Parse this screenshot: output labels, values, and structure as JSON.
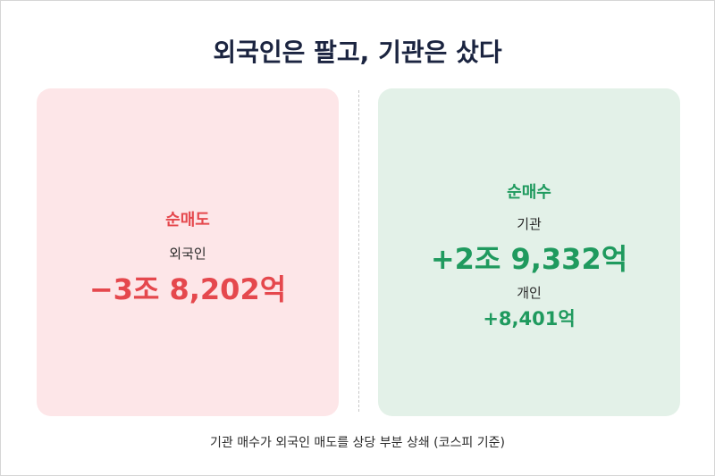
{
  "header": {
    "title": "외국인은 팔고, 기관은 샀다"
  },
  "panels": [
    {
      "heading": "순매도",
      "items": [
        {
          "label": "외국인",
          "amount": "−3조 8,202억"
        }
      ]
    },
    {
      "heading": "순매수",
      "items": [
        {
          "label": "기관",
          "amount": "+2조 9,332억"
        },
        {
          "label": "개인",
          "amount": "+8,401억"
        }
      ]
    }
  ],
  "footer": {
    "note": "기관 매수가 외국인 매도를 상당 부분 상쇄 (코스피 기준)"
  }
}
